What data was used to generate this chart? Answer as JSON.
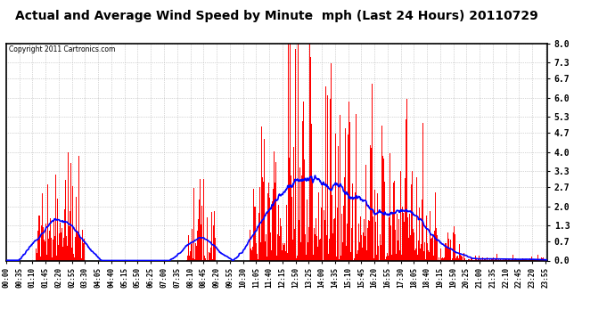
{
  "title": "Actual and Average Wind Speed by Minute  mph (Last 24 Hours) 20110729",
  "copyright": "Copyright 2011 Cartronics.com",
  "yticks": [
    0.0,
    0.7,
    1.3,
    2.0,
    2.7,
    3.3,
    4.0,
    4.7,
    5.3,
    6.0,
    6.7,
    7.3,
    8.0
  ],
  "ymax": 8.0,
  "ymin": 0.0,
  "bar_color": "#ff0000",
  "line_color": "#0000ff",
  "background_color": "#ffffff",
  "grid_color": "#999999",
  "title_fontsize": 11,
  "copyright_fontsize": 6,
  "num_minutes": 1440,
  "tick_step": 35
}
